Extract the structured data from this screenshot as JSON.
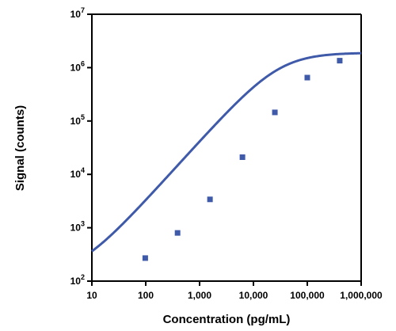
{
  "chart_data": {
    "type": "scatter",
    "xlabel": "Concentration (pg/mL)",
    "ylabel": "Signal (counts)",
    "x_scale": "log",
    "y_scale": "log",
    "xlim": [
      10,
      1000000
    ],
    "ylim": [
      100,
      10000000
    ],
    "x_tick_labels": [
      "10",
      "100",
      "1,000",
      "10,000",
      "100,000",
      "1,000,000"
    ],
    "x_tick_values": [
      10,
      100,
      1000,
      10000,
      100000,
      1000000
    ],
    "y_tick_labels": [
      {
        "base": "10",
        "exp": "2"
      },
      {
        "base": "10",
        "exp": "3"
      },
      {
        "base": "10",
        "exp": "4"
      },
      {
        "base": "10",
        "exp": "5"
      },
      {
        "base": "10",
        "exp": "6"
      },
      {
        "base": "10",
        "exp": "7"
      }
    ],
    "y_tick_values": [
      100,
      1000,
      10000,
      100000,
      1000000,
      10000000
    ],
    "series": [
      {
        "marker": "square",
        "color": "#3f5aa9",
        "x": [
          98,
          390,
          1560,
          6250,
          25000,
          100000,
          400000
        ],
        "y": [
          270,
          800,
          3400,
          21000,
          145000,
          650000,
          1350000
        ]
      }
    ],
    "fit_curve": {
      "model": "4PL",
      "color": "#3f5aa9",
      "bottom": 120,
      "top": 1900000,
      "ec50": 30000,
      "hill": 1.12
    },
    "grid": false,
    "legend": "none"
  }
}
